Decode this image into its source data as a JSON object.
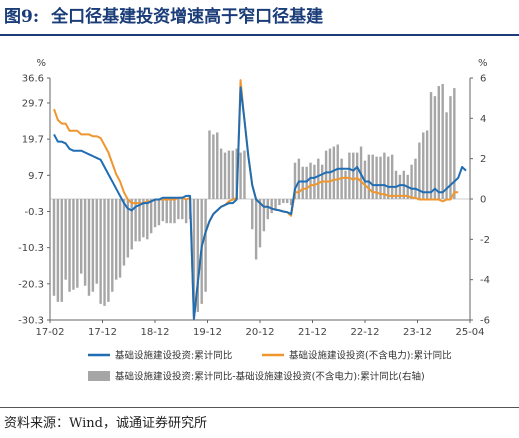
{
  "figure": {
    "label": "图9:",
    "title": "全口径基建投资增速高于窄口径基建",
    "source": "资料来源：Wind，诚通证券研究所"
  },
  "colors": {
    "title": "#1a3c78",
    "line_narrow": "#1f6db5",
    "line_wide": "#f0962e",
    "bars": "#a6a6a6"
  },
  "chart_data": {
    "type": "bar+line",
    "left_axis": {
      "unit": "%",
      "ticks": [
        36.6,
        29.7,
        19.7,
        9.7,
        -0.3,
        -10.3,
        -20.3,
        -30.3
      ],
      "range": [
        -30.3,
        36.6
      ]
    },
    "right_axis": {
      "unit": "%",
      "ticks": [
        6,
        4,
        2,
        0,
        -2,
        -4,
        -6
      ],
      "range": [
        -6,
        6
      ]
    },
    "x_tick_labels": [
      "17-02",
      "17-12",
      "18-12",
      "19-12",
      "20-12",
      "21-12",
      "22-12",
      "23-12",
      "25-04"
    ],
    "series": [
      {
        "name": "基础设施建设投资:累计同比",
        "axis": "left",
        "values": [
          21,
          19,
          19,
          18.5,
          17,
          16.5,
          16.5,
          16.5,
          16,
          15.5,
          15,
          14.5,
          14,
          12,
          10,
          8,
          6,
          4,
          2,
          0.5,
          0,
          1,
          1.5,
          2,
          2,
          2.5,
          3,
          3,
          3.5,
          3.5,
          3.5,
          3.5,
          3.5,
          3.5,
          4,
          4,
          -30,
          -20,
          -10,
          -6,
          -3,
          -1,
          0,
          1,
          1.5,
          2,
          2,
          3,
          34,
          25,
          15,
          7,
          3,
          2,
          1,
          1,
          0.5,
          0.2,
          0,
          -0.3,
          -0.5,
          -1,
          6,
          8,
          8,
          8,
          9,
          9,
          9.5,
          10,
          10.5,
          10.5,
          11,
          11.5,
          11.5,
          11.5,
          11.5,
          11,
          12,
          10,
          8,
          8,
          7,
          7,
          7,
          7,
          6.5,
          6.5,
          6.5,
          7,
          7,
          6.5,
          6,
          6,
          5.5,
          5,
          5,
          5,
          6,
          5,
          5,
          6,
          7,
          8,
          9,
          12,
          11
        ],
        "approximate": true
      },
      {
        "name": "基础设施建设投资(不含电力):累计同比",
        "axis": "left",
        "values": [
          28,
          25,
          24,
          24,
          22,
          22,
          22,
          21,
          21,
          21,
          20.5,
          20.5,
          20,
          18,
          16,
          13,
          10,
          8,
          5,
          3,
          2,
          2,
          2,
          2,
          2.5,
          2.5,
          3,
          3,
          3,
          3,
          3,
          3,
          3.5,
          3.5,
          3,
          3.5,
          -30,
          -20,
          -10,
          -6,
          -3,
          -1,
          0,
          1,
          1.5,
          2.5,
          3,
          3.5,
          36,
          25,
          15,
          7,
          3,
          2,
          1,
          1,
          0.5,
          0.2,
          0,
          -0.3,
          -0.5,
          -1.5,
          5,
          5,
          6,
          6,
          7,
          7,
          7.5,
          8,
          8,
          8,
          8.5,
          8.5,
          9,
          9,
          9,
          8.5,
          9,
          8,
          7,
          6,
          5,
          5,
          4.5,
          4.5,
          4,
          4,
          4,
          4,
          4,
          4,
          3.5,
          3.5,
          3,
          3,
          3,
          3,
          3,
          3,
          2.5,
          3,
          3,
          5,
          5
        ],
        "approximate": true
      },
      {
        "name": "基础设施建设投资:累计同比-基础设施建设投资(不含电力):累计同比(右轴)",
        "axis": "right",
        "values": [
          -4.8,
          -5.1,
          -5.1,
          -4.0,
          -4.6,
          -4.5,
          -4.4,
          -3.7,
          -4.3,
          -4.8,
          -4.6,
          -4.2,
          -5.2,
          -5.3,
          -5.1,
          -4.6,
          -4.0,
          -3.9,
          -3.3,
          -2.9,
          -2.5,
          -2.1,
          -2.1,
          -1.9,
          -2.0,
          -1.7,
          -1.4,
          -1.3,
          -1.1,
          -1.2,
          -1.2,
          -1.2,
          -1.0,
          -1.0,
          -1.2,
          -1.0,
          -5.8,
          -5.6,
          -5.2,
          -4.6,
          3.4,
          3.2,
          3.3,
          2.5,
          2.3,
          2.4,
          2.4,
          2.5,
          2.3,
          2.4,
          0,
          -1.5,
          -3.0,
          -2.4,
          -1.6,
          -1.0,
          -0.7,
          -0.5,
          -0.3,
          -0.2,
          -0.2,
          -0.3,
          1.8,
          2.0,
          1.6,
          1.6,
          1.8,
          1.7,
          2.0,
          1.7,
          2.4,
          2.5,
          2.6,
          2.7,
          2.0,
          1.4,
          2.3,
          2.3,
          2.3,
          2.6,
          1.9,
          2.2,
          2.2,
          2.1,
          2.1,
          2.3,
          2.1,
          2.2,
          1.4,
          1.2,
          1.4,
          1.2,
          1.7,
          2.0,
          2.8,
          3.3,
          3.4,
          5.3,
          5.1,
          5.6,
          5.7,
          4.3,
          5.1,
          5.5
        ],
        "approximate": true
      }
    ],
    "legend": [
      "基础设施建设投资:累计同比",
      "基础设施建设投资(不含电力):累计同比",
      "基础设施建设投资:累计同比-基础设施建设投资(不含电力):累计同比(右轴)"
    ],
    "grid": false
  }
}
